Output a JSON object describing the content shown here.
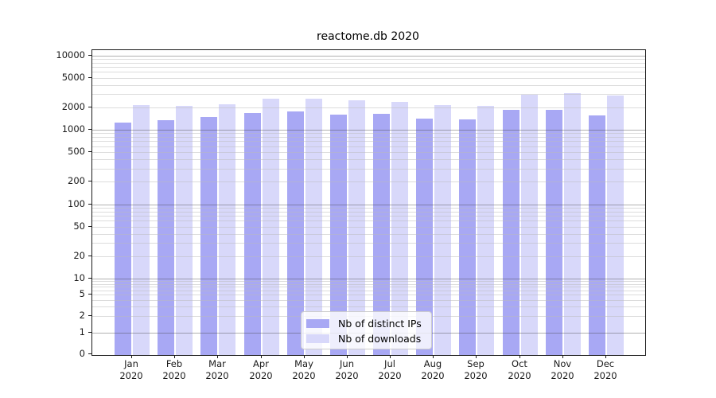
{
  "title": "reactome.db 2020",
  "chart_data": {
    "type": "bar",
    "title": "reactome.db 2020",
    "scale": "symlog",
    "grid": true,
    "legend_position": "bottom-center",
    "x_tick_line2": "2020",
    "categories": [
      "Jan",
      "Feb",
      "Mar",
      "Apr",
      "May",
      "Jun",
      "Jul",
      "Aug",
      "Sep",
      "Oct",
      "Nov",
      "Dec"
    ],
    "yticks": [
      0,
      1,
      2,
      5,
      10,
      20,
      50,
      100,
      200,
      500,
      1000,
      2000,
      5000,
      10000
    ],
    "ylim": [
      0,
      13000
    ],
    "series": [
      {
        "name": "Nb of distinct IPs",
        "color": "#a8a8f4",
        "values": [
          1260,
          1360,
          1480,
          1680,
          1760,
          1590,
          1630,
          1400,
          1370,
          1830,
          1840,
          1570
        ]
      },
      {
        "name": "Nb of downloads",
        "color": "#d8d8fa",
        "values": [
          2150,
          2100,
          2200,
          2590,
          2620,
          2490,
          2390,
          2150,
          2100,
          2930,
          3100,
          2860
        ]
      }
    ]
  }
}
